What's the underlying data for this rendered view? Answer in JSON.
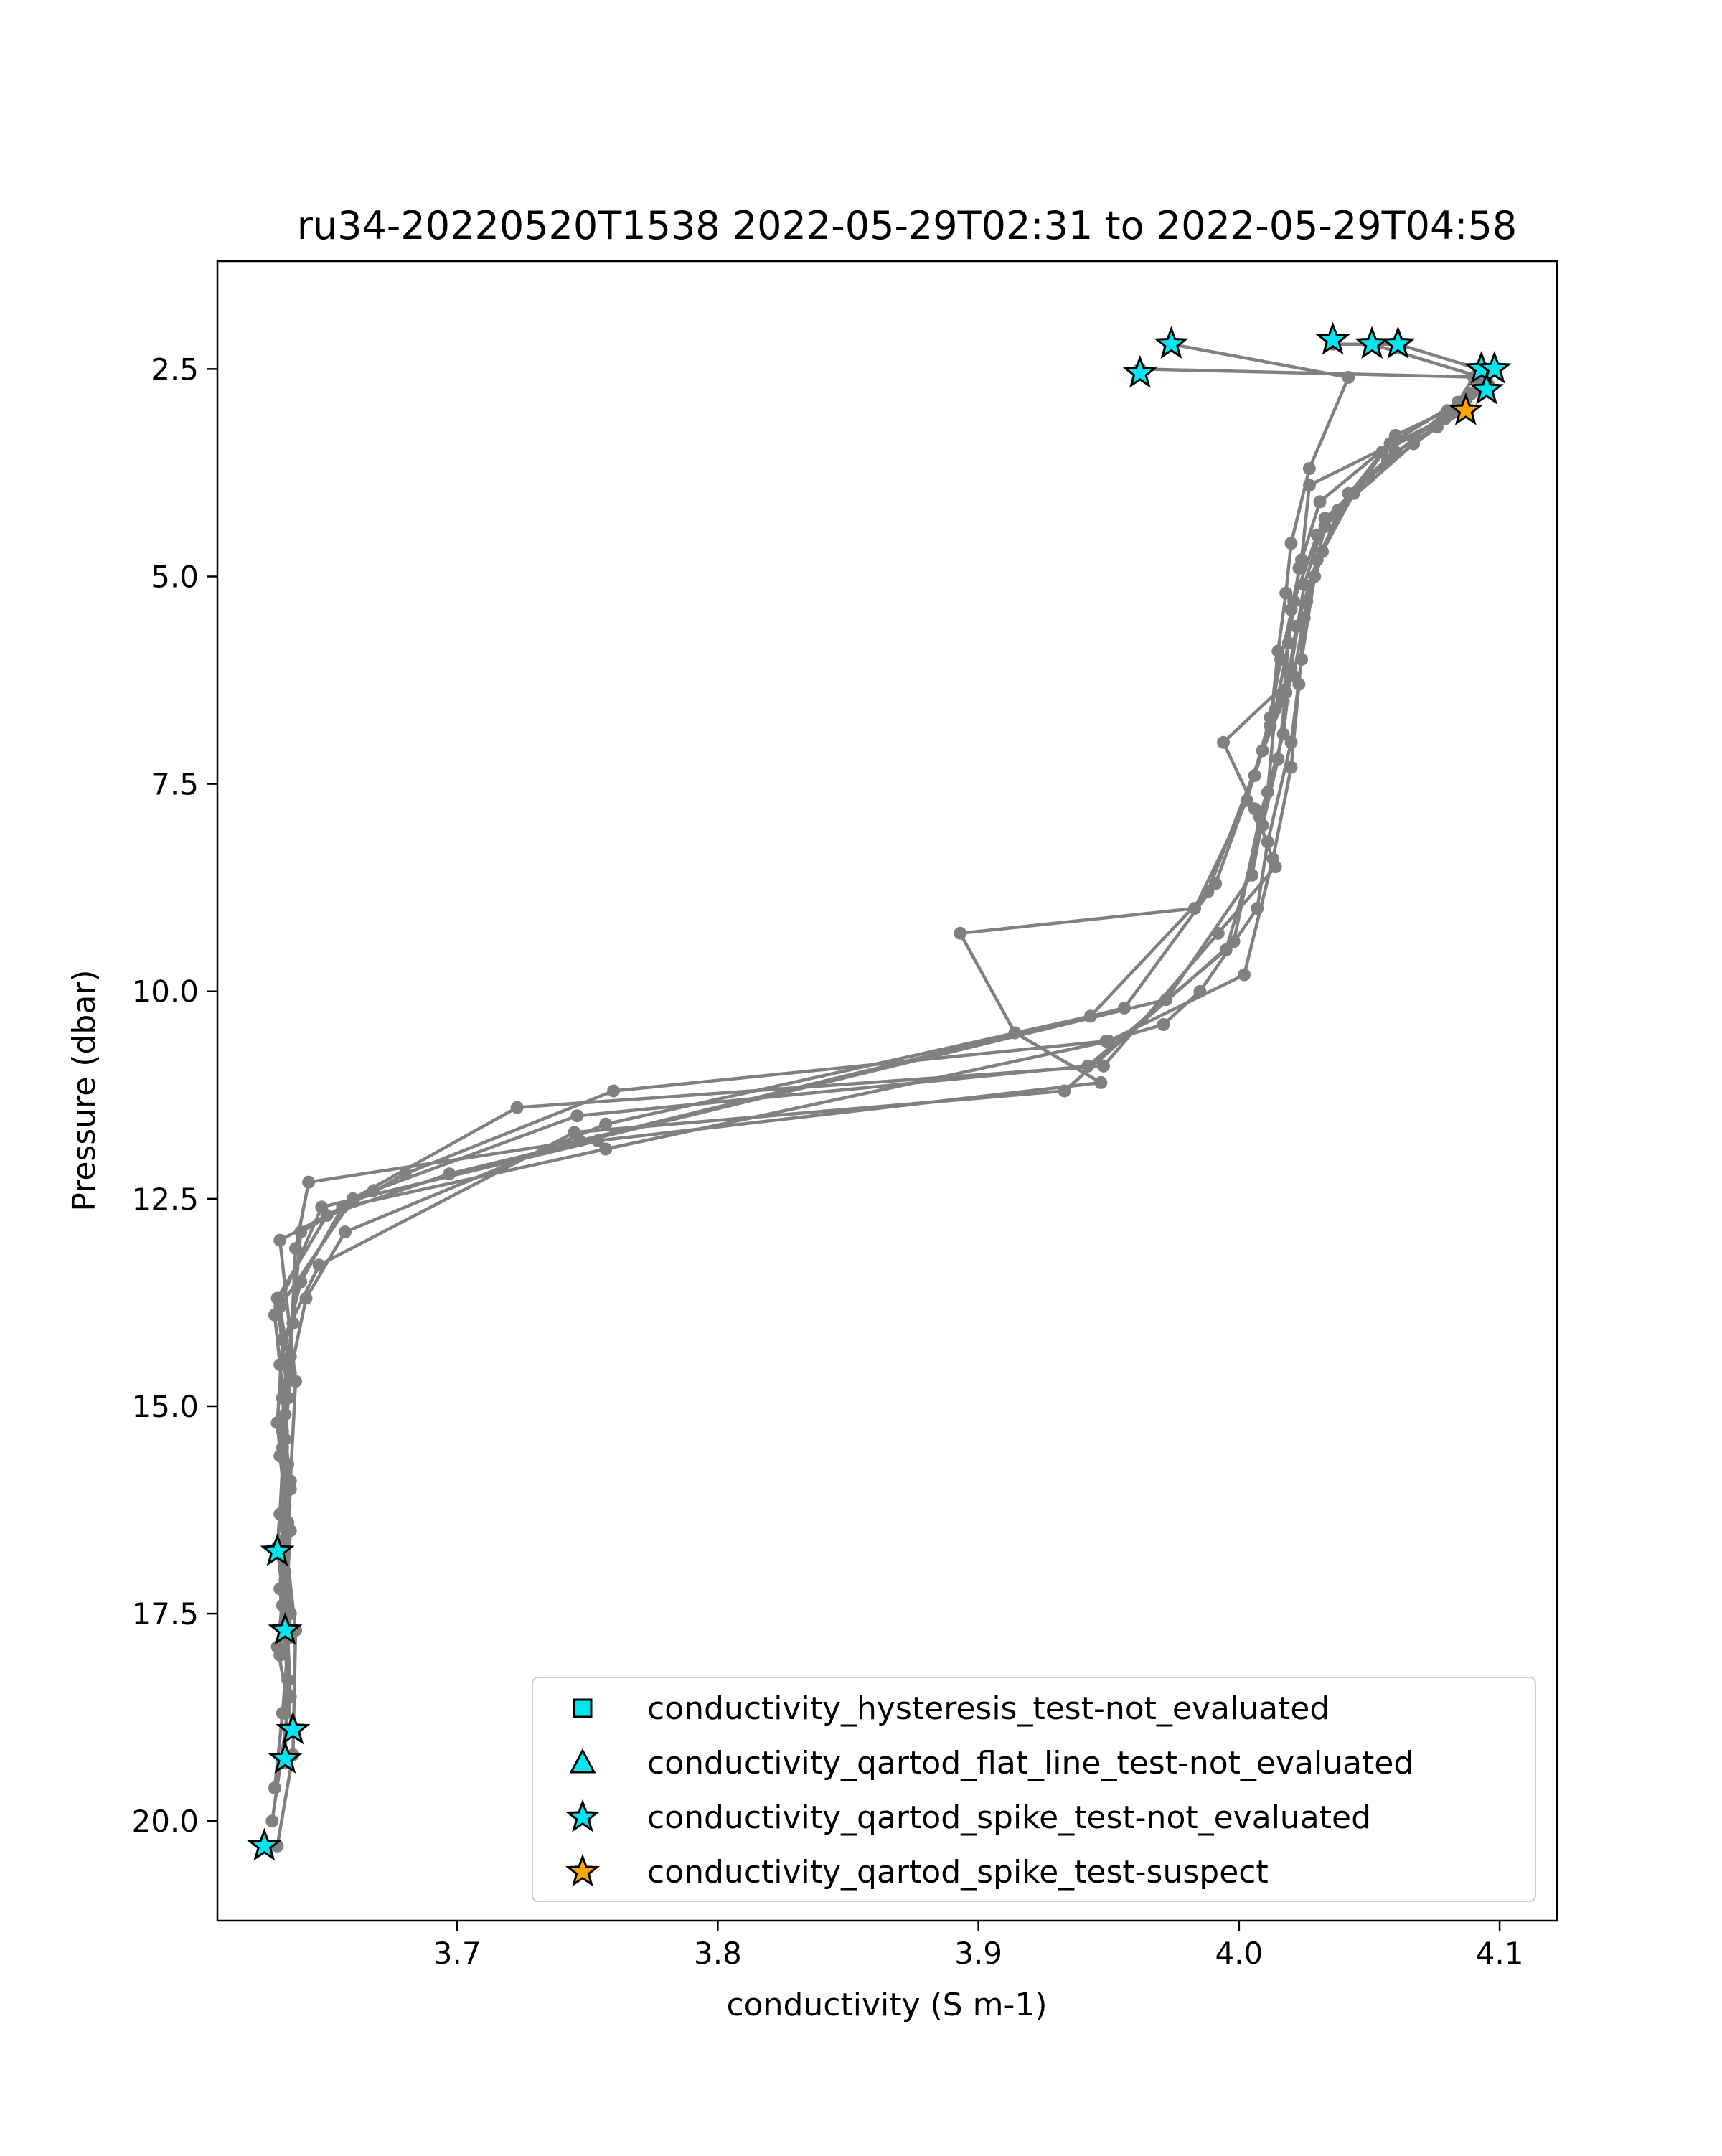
{
  "chart_data": {
    "type": "scatter",
    "title": "ru34-20220520T1538 2022-05-29T02:31 to 2022-05-29T04:58",
    "xlabel": "conductivity (S m-1)",
    "ylabel": "Pressure (dbar)",
    "xlim": [
      3.608,
      4.122
    ],
    "ylim": [
      21.2,
      1.2
    ],
    "y_inverted": true,
    "grid": false,
    "legend_position": "lower-right",
    "xticks": [
      3.7,
      3.8,
      3.9,
      4.0,
      4.1
    ],
    "xtick_labels": [
      "3.7",
      "3.8",
      "3.9",
      "4.0",
      "4.1"
    ],
    "yticks": [
      2.5,
      5.0,
      7.5,
      10.0,
      12.5,
      15.0,
      17.5,
      20.0
    ],
    "ytick_labels": [
      "2.5",
      "5.0",
      "7.5",
      "10.0",
      "12.5",
      "15.0",
      "17.5",
      "20.0"
    ],
    "colors": {
      "profile_line": "#808080",
      "not_evaluated": "#00e5ee",
      "suspect": "#ffa500",
      "marker_edge": "#000000",
      "frame": "#000000"
    },
    "profiles": [
      [
        [
          3.974,
          2.2
        ],
        [
          4.042,
          2.6
        ],
        [
          4.027,
          3.7
        ],
        [
          4.02,
          4.6
        ],
        [
          4.018,
          5.2
        ],
        [
          4.015,
          5.9
        ],
        [
          4.012,
          6.8
        ],
        [
          4.006,
          7.4
        ],
        [
          3.991,
          8.7
        ],
        [
          3.956,
          10.2
        ],
        [
          3.747,
          11.8
        ],
        [
          3.643,
          12.3
        ],
        [
          3.638,
          13.1
        ],
        [
          3.636,
          14.4
        ],
        [
          3.633,
          15.3
        ],
        [
          3.634,
          16.6
        ],
        [
          3.638,
          17.7
        ],
        [
          3.637,
          19.2
        ],
        [
          3.631,
          20.3
        ]
      ],
      [
        [
          4.036,
          2.2
        ],
        [
          4.061,
          2.2
        ],
        [
          4.092,
          2.5
        ],
        [
          4.082,
          3.0
        ],
        [
          4.067,
          3.4
        ],
        [
          4.038,
          4.2
        ],
        [
          4.029,
          5.0
        ],
        [
          4.024,
          6.0
        ],
        [
          4.02,
          7.0
        ],
        [
          4.011,
          8.2
        ],
        [
          4.007,
          9.0
        ],
        [
          3.985,
          10.0
        ],
        [
          3.971,
          10.4
        ],
        [
          3.949,
          10.6
        ],
        [
          3.76,
          11.2
        ],
        [
          3.68,
          12.2
        ],
        [
          3.64,
          12.9
        ],
        [
          3.637,
          14.0
        ],
        [
          3.633,
          14.9
        ],
        [
          3.636,
          16.0
        ],
        [
          3.634,
          17.1
        ],
        [
          3.631,
          17.9
        ],
        [
          3.637,
          18.9
        ]
      ],
      [
        [
          4.051,
          2.2
        ],
        [
          4.093,
          2.6
        ],
        [
          4.087,
          3.0
        ],
        [
          4.06,
          3.5
        ],
        [
          4.042,
          4.0
        ],
        [
          4.03,
          4.8
        ],
        [
          4.022,
          5.6
        ],
        [
          4.018,
          6.4
        ],
        [
          4.015,
          7.2
        ],
        [
          4.009,
          8.0
        ],
        [
          3.995,
          9.5
        ],
        [
          3.942,
          10.9
        ],
        [
          3.746,
          11.5
        ],
        [
          3.668,
          12.4
        ],
        [
          3.632,
          13.0
        ],
        [
          3.638,
          14.7
        ],
        [
          3.636,
          15.9
        ],
        [
          3.634,
          17.0
        ],
        [
          3.636,
          18.5
        ],
        [
          3.629,
          20.0
        ]
      ],
      [
        [
          3.962,
          2.5
        ],
        [
          4.095,
          2.6
        ],
        [
          4.076,
          3.2
        ],
        [
          4.05,
          3.8
        ],
        [
          4.033,
          4.4
        ],
        [
          4.026,
          5.3
        ],
        [
          4.021,
          6.2
        ],
        [
          3.994,
          7.0
        ],
        [
          4.006,
          7.8
        ],
        [
          4.014,
          8.5
        ],
        [
          3.992,
          9.3
        ],
        [
          3.948,
          10.9
        ],
        [
          3.723,
          11.4
        ],
        [
          3.66,
          12.5
        ],
        [
          3.632,
          13.8
        ],
        [
          3.636,
          14.6
        ],
        [
          3.634,
          15.4
        ],
        [
          3.631,
          16.7
        ],
        [
          3.635,
          17.8
        ],
        [
          3.634,
          19.3
        ]
      ],
      [
        [
          4.098,
          2.5
        ],
        [
          4.095,
          2.7
        ],
        [
          4.08,
          3.0
        ],
        [
          4.06,
          3.3
        ],
        [
          4.044,
          4.0
        ],
        [
          4.032,
          4.7
        ],
        [
          4.025,
          5.5
        ],
        [
          4.023,
          6.3
        ],
        [
          4.02,
          7.3
        ],
        [
          4.013,
          8.4
        ],
        [
          4.002,
          9.8
        ],
        [
          3.95,
          10.6
        ],
        [
          3.757,
          11.9
        ],
        [
          3.656,
          12.6
        ],
        [
          3.64,
          13.5
        ],
        [
          3.632,
          14.5
        ],
        [
          3.635,
          15.7
        ],
        [
          3.633,
          16.8
        ],
        [
          3.632,
          18.0
        ]
      ],
      [
        [
          4.094,
          2.5
        ],
        [
          4.089,
          2.8
        ],
        [
          4.058,
          3.4
        ],
        [
          4.031,
          4.1
        ],
        [
          4.023,
          4.9
        ],
        [
          4.019,
          5.8
        ],
        [
          4.014,
          6.6
        ],
        [
          4.011,
          7.6
        ],
        [
          4.005,
          8.6
        ],
        [
          3.972,
          10.1
        ],
        [
          3.697,
          12.2
        ],
        [
          3.65,
          12.7
        ],
        [
          3.631,
          13.7
        ],
        [
          3.635,
          14.9
        ],
        [
          3.632,
          15.6
        ],
        [
          3.635,
          16.4
        ],
        [
          3.633,
          17.4
        ]
      ],
      [
        [
          4.09,
          2.6
        ],
        [
          4.084,
          2.9
        ],
        [
          4.057,
          3.6
        ],
        [
          4.033,
          4.3
        ],
        [
          4.025,
          5.1
        ],
        [
          4.02,
          6.1
        ],
        [
          4.017,
          6.9
        ],
        [
          4.008,
          7.9
        ],
        [
          3.998,
          9.4
        ],
        [
          3.933,
          11.2
        ],
        [
          3.745,
          11.7
        ],
        [
          3.647,
          13.3
        ],
        [
          3.633,
          14.2
        ],
        [
          3.631,
          15.2
        ],
        [
          3.634,
          16.2
        ],
        [
          3.632,
          17.2
        ],
        [
          3.635,
          18.3
        ]
      ],
      [
        [
          4.085,
          3.0
        ],
        [
          4.027,
          3.9
        ],
        [
          4.024,
          4.8
        ],
        [
          4.02,
          5.4
        ],
        [
          4.017,
          6.5
        ],
        [
          4.009,
          7.1
        ],
        [
          3.988,
          8.8
        ],
        [
          3.943,
          10.3
        ],
        [
          3.757,
          11.6
        ],
        [
          3.657,
          12.9
        ],
        [
          3.642,
          13.7
        ],
        [
          3.636,
          14.6
        ],
        [
          3.633,
          15.5
        ],
        [
          3.636,
          16.5
        ],
        [
          3.634,
          17.6
        ]
      ],
      [
        [
          4.096,
          2.7
        ],
        [
          4.079,
          3.1
        ],
        [
          4.055,
          3.5
        ],
        [
          4.03,
          4.5
        ],
        [
          4.021,
          5.3
        ],
        [
          4.016,
          6.0
        ],
        [
          4.012,
          6.7
        ],
        [
          4.003,
          7.7
        ],
        [
          3.983,
          9.0
        ],
        [
          3.893,
          9.3
        ],
        [
          3.914,
          10.5
        ],
        [
          3.947,
          11.1
        ],
        [
          3.754,
          11.8
        ],
        [
          3.648,
          12.6
        ],
        [
          3.63,
          13.9
        ],
        [
          3.634,
          15.1
        ],
        [
          3.632,
          16.3
        ],
        [
          3.636,
          17.5
        ],
        [
          3.633,
          18.7
        ],
        [
          3.63,
          19.6
        ]
      ]
    ],
    "flags": [
      {
        "x": 3.974,
        "y": 2.2,
        "category": "not_evaluated"
      },
      {
        "x": 4.036,
        "y": 2.15,
        "category": "not_evaluated"
      },
      {
        "x": 4.051,
        "y": 2.2,
        "category": "not_evaluated"
      },
      {
        "x": 4.061,
        "y": 2.2,
        "category": "not_evaluated"
      },
      {
        "x": 3.962,
        "y": 2.55,
        "category": "not_evaluated"
      },
      {
        "x": 4.093,
        "y": 2.5,
        "category": "not_evaluated"
      },
      {
        "x": 4.098,
        "y": 2.5,
        "category": "not_evaluated"
      },
      {
        "x": 4.095,
        "y": 2.75,
        "category": "not_evaluated"
      },
      {
        "x": 4.087,
        "y": 3.0,
        "category": "suspect"
      },
      {
        "x": 3.631,
        "y": 16.75,
        "category": "not_evaluated"
      },
      {
        "x": 3.634,
        "y": 17.7,
        "category": "not_evaluated"
      },
      {
        "x": 3.637,
        "y": 18.9,
        "category": "not_evaluated"
      },
      {
        "x": 3.634,
        "y": 19.25,
        "category": "not_evaluated"
      },
      {
        "x": 3.626,
        "y": 20.3,
        "category": "not_evaluated"
      }
    ],
    "legend": [
      {
        "label": "conductivity_hysteresis_test-not_evaluated",
        "marker": "square",
        "color": "#00e5ee"
      },
      {
        "label": "conductivity_qartod_flat_line_test-not_evaluated",
        "marker": "triangle",
        "color": "#00e5ee"
      },
      {
        "label": "conductivity_qartod_spike_test-not_evaluated",
        "marker": "star",
        "color": "#00e5ee"
      },
      {
        "label": "conductivity_qartod_spike_test-suspect",
        "marker": "star",
        "color": "#ffa500"
      }
    ]
  }
}
